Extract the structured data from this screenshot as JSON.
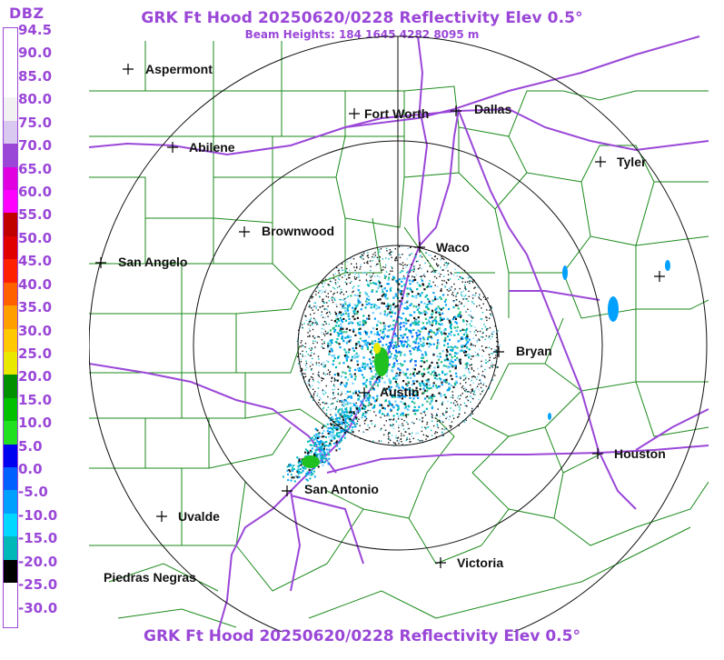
{
  "header": {
    "title": "GRK Ft Hood 20250620/0228 Reflectivity Elev 0.5°",
    "subtitle": "Beam Heights: 184 1645 4282 8095 m"
  },
  "footer": {
    "title": "GRK Ft Hood 20250620/0228 Reflectivity Elev 0.5°"
  },
  "legend": {
    "title": "DBZ",
    "labels": [
      "94.5",
      "90.0",
      "85.0",
      "80.0",
      "75.0",
      "70.0",
      "65.0",
      "60.0",
      "55.0",
      "50.0",
      "45.0",
      "40.0",
      "35.0",
      "30.0",
      "25.0",
      "20.0",
      "15.0",
      "10.0",
      "5.0",
      "0.0",
      "-5.0",
      "-10.0",
      "-15.0",
      "-20.0",
      "-25.0",
      "-30.0"
    ],
    "colors": [
      "#ffffff",
      "#ffffff",
      "#ffffff",
      "#f2f2f2",
      "#d9c8f0",
      "#9a47d8",
      "#e000e0",
      "#ff00ff",
      "#c00000",
      "#e00000",
      "#ff2000",
      "#ff6000",
      "#ffa000",
      "#ffc800",
      "#e8e800",
      "#009000",
      "#00c000",
      "#20e020",
      "#0000f0",
      "#0060ff",
      "#00a0ff",
      "#00d8ff",
      "#00b8b8",
      "#000000",
      "#ffffff",
      "#ffffff"
    ]
  },
  "cities": [
    {
      "name": "Aspermont"
    },
    {
      "name": "Fort Worth"
    },
    {
      "name": "Dallas"
    },
    {
      "name": "Abilene"
    },
    {
      "name": "Tyler"
    },
    {
      "name": "Brownwood"
    },
    {
      "name": "Waco"
    },
    {
      "name": "San Angelo"
    },
    {
      "name": "Bryan"
    },
    {
      "name": "Austin"
    },
    {
      "name": "Houston"
    },
    {
      "name": "San Antonio"
    },
    {
      "name": "Uvalde"
    },
    {
      "name": "Victoria"
    },
    {
      "name": "Piedras Negras"
    }
  ],
  "colors": {
    "accent": "#9a47d8",
    "county_lines": "#1a8a1a",
    "highways": "#9a47d8",
    "range_rings": "#111111"
  }
}
